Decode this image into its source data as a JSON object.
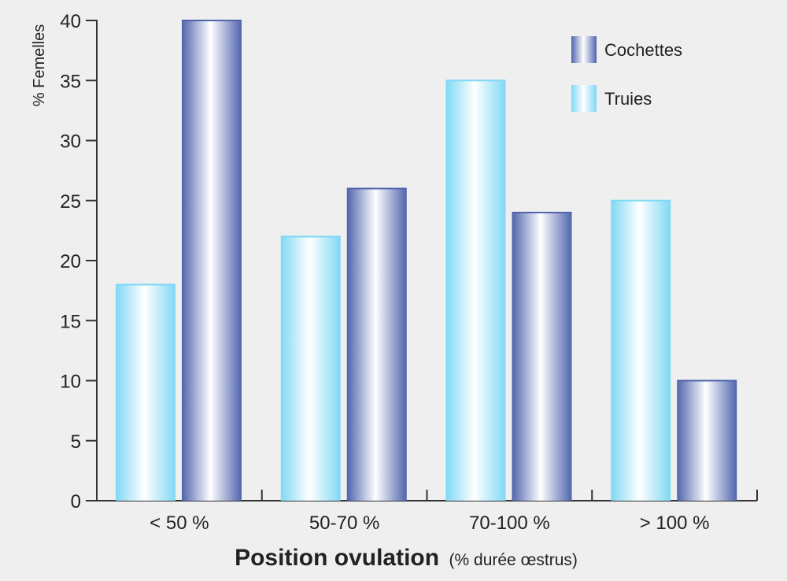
{
  "chart_data": {
    "type": "bar",
    "categories": [
      "< 50 %",
      "50-70 %",
      "70-100 %",
      "> 100 %"
    ],
    "series": [
      {
        "name": "Truies",
        "values": [
          18,
          22,
          35,
          25
        ],
        "color": "#7fd8f4",
        "highlight": "#ffffff"
      },
      {
        "name": "Cochettes",
        "values": [
          40,
          26,
          24,
          10
        ],
        "color": "#4f64ad",
        "highlight": "#ffffff"
      }
    ],
    "legend_order": [
      "Cochettes",
      "Truies"
    ],
    "legend_position": "top-right",
    "ylabel": "% Femelles",
    "xlabel_main": "Position ovulation",
    "xlabel_sub": "(% durée œstrus)",
    "ylim": [
      0,
      40
    ],
    "yticks": [
      0,
      5,
      10,
      15,
      20,
      25,
      30,
      35,
      40
    ],
    "grid": false
  }
}
